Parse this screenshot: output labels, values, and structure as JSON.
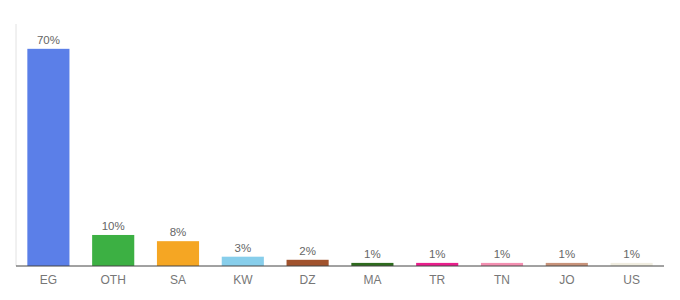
{
  "chart_data": {
    "type": "bar",
    "categories": [
      "EG",
      "OTH",
      "SA",
      "KW",
      "DZ",
      "MA",
      "TR",
      "TN",
      "JO",
      "US"
    ],
    "values": [
      70,
      10,
      8,
      3,
      2,
      1,
      1,
      1,
      1,
      1
    ],
    "value_labels": [
      "70%",
      "10%",
      "8%",
      "3%",
      "2%",
      "1%",
      "1%",
      "1%",
      "1%",
      "1%"
    ],
    "colors": [
      "#5b7fe8",
      "#3cb043",
      "#f5a623",
      "#87ceeb",
      "#a0522d",
      "#2e6b1e",
      "#e91e8c",
      "#f48fb1",
      "#c8937a",
      "#f0ede0"
    ],
    "ylim": [
      0,
      78
    ],
    "data_labels": true,
    "tick_labels": "x",
    "grid": false
  }
}
